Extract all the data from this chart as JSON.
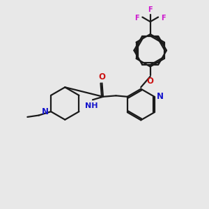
{
  "background_color": "#e8e8e8",
  "bond_color": "#1a1a1a",
  "nitrogen_color": "#1414cc",
  "oxygen_color": "#cc1414",
  "fluorine_color": "#cc14cc",
  "figsize": [
    3.0,
    3.0
  ],
  "dpi": 100,
  "xlim": [
    0,
    10
  ],
  "ylim": [
    0,
    10
  ]
}
